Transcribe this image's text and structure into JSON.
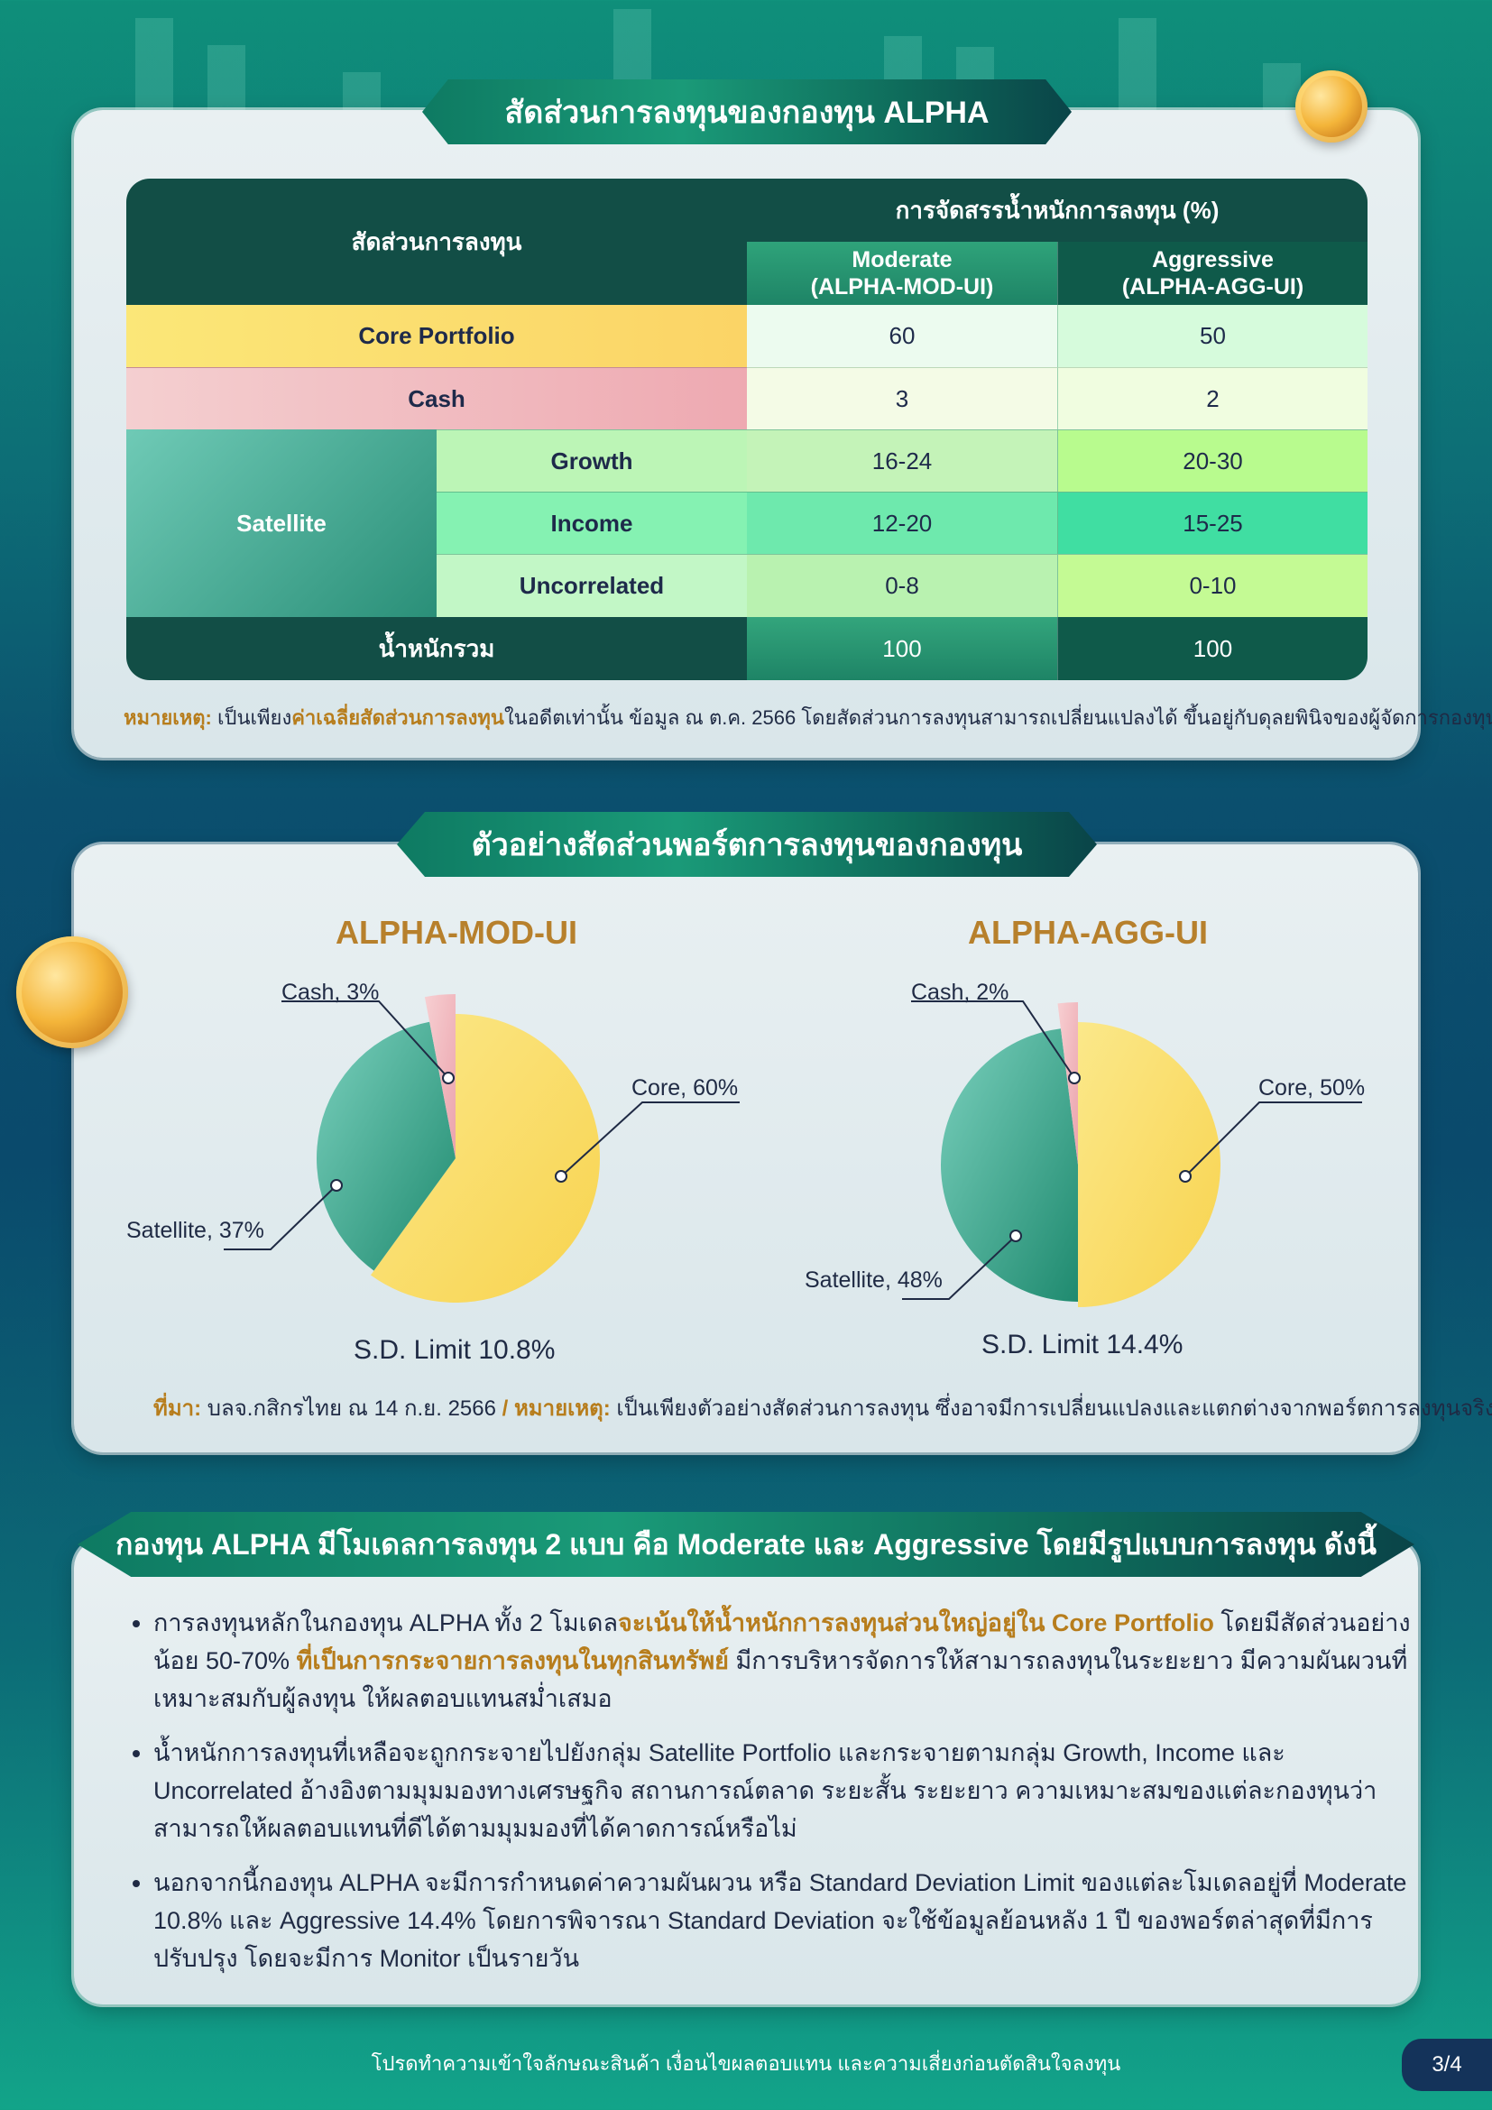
{
  "section1": {
    "title": "สัดส่วนการลงทุนของกองทุน ALPHA",
    "table": {
      "col_group_header": "สัดส่วนการลงทุน",
      "weight_header": "การจัดสรรน้ำหนักการลงทุน (%)",
      "moderate_header": "Moderate\n(ALPHA-MOD-UI)",
      "aggressive_header": "Aggressive\n(ALPHA-AGG-UI)",
      "rows": [
        {
          "label": "Core Portfolio",
          "moderate": "60",
          "aggressive": "50"
        },
        {
          "label": "Cash",
          "moderate": "3",
          "aggressive": "2"
        },
        {
          "label": "Growth",
          "moderate": "16-24",
          "aggressive": "20-30"
        },
        {
          "label": "Income",
          "moderate": "12-20",
          "aggressive": "15-25"
        },
        {
          "label": "Uncorrelated",
          "moderate": "0-8",
          "aggressive": "0-10"
        }
      ],
      "satellite_label": "Satellite",
      "total_label": "น้ำหนักรวม",
      "total_moderate": "100",
      "total_aggressive": "100"
    },
    "note_prefix": "หมายเหตุ:",
    "note_part1": " เป็นเพียง",
    "note_highlight": "ค่าเฉลี่ยสัดส่วนการลงทุน",
    "note_part2": "ในอดีตเท่านั้น ข้อมูล ณ ต.ค. 2566 โดยสัดส่วนการลงทุนสามารถเปลี่ยนแปลงได้ ขึ้นอยู่กับดุลยพินิจของผู้จัดการกองทุน"
  },
  "section2": {
    "title": "ตัวอย่างสัดส่วนพอร์ตการลงทุนของกองทุน",
    "source_prefix": "ที่มา:",
    "source_text": " บลจ.กสิกรไทย ณ 14 ก.ย. 2566 ",
    "sep": "/",
    "note_prefix": " หมายเหตุ:",
    "note_text": " เป็นเพียงตัวอย่างสัดส่วนการลงทุน ซึ่งอาจมีการเปลี่ยนแปลงและแตกต่างจากพอร์ตการลงทุนจริง"
  },
  "chart_data": [
    {
      "type": "pie",
      "title": "ALPHA-MOD-UI",
      "slices": [
        {
          "label": "Core, 60%",
          "value": 60,
          "color": "#fbd860"
        },
        {
          "label": "Satellite, 37%",
          "value": 37,
          "color": "#3aa88e"
        },
        {
          "label": "Cash, 3%",
          "value": 3,
          "color": "#f2b8bc"
        }
      ],
      "sd_limit": "S.D. Limit 10.8%"
    },
    {
      "type": "pie",
      "title": "ALPHA-AGG-UI",
      "slices": [
        {
          "label": "Core, 50%",
          "value": 50,
          "color": "#fbd860"
        },
        {
          "label": "Satellite, 48%",
          "value": 48,
          "color": "#3aa88e"
        },
        {
          "label": "Cash, 2%",
          "value": 2,
          "color": "#f2b8bc"
        }
      ],
      "sd_limit": "S.D. Limit 14.4%"
    }
  ],
  "section3": {
    "title": "กองทุน ALPHA มีโมเดลการลงทุน 2 แบบ คือ Moderate และ Aggressive โดยมีรูปแบบการลงทุน ดังนี้",
    "b1_part1": "การลงทุนหลักในกองทุน ALPHA ทั้ง 2 โมเดล",
    "b1_highlight1": "จะเน้นให้น้ำหนักการลงทุนส่วนใหญ่อยู่ใน Core Portfolio",
    "b1_part2": " โดยมีสัดส่วนอย่างน้อย 50-70% ",
    "b1_highlight2": "ที่เป็นการกระจายการลงทุนในทุกสินทรัพย์",
    "b1_part3": " มีการบริหารจัดการให้สามารถลงทุนในระยะยาว มีความผันผวนที่เหมาะสมกับผู้ลงทุน ให้ผลตอบแทนสม่ำเสมอ",
    "b2": "น้ำหนักการลงทุนที่เหลือจะถูกกระจายไปยังกลุ่ม Satellite Portfolio และกระจายตามกลุ่ม Growth, Income และ Uncorrelated อ้างอิงตามมุมมองทางเศรษฐกิจ สถานการณ์ตลาด ระยะสั้น ระยะยาว ความเหมาะสมของแต่ละกองทุนว่าสามารถให้ผลตอบแทนที่ดีได้ตามมุมมองที่ได้คาดการณ์หรือไม่",
    "b3": "นอกจากนี้กองทุน ALPHA จะมีการกำหนดค่าความผันผวน หรือ Standard Deviation Limit ของแต่ละโมเดลอยู่ที่ Moderate 10.8% และ Aggressive 14.4% โดยการพิจารณา Standard Deviation จะใช้ข้อมูลย้อนหลัง 1 ปี ของพอร์ตล่าสุดที่มีการปรับปรุง โดยจะมีการ Monitor เป็นรายวัน"
  },
  "footer": {
    "disclaimer": "โปรดทำความเข้าใจลักษณะสินค้า เงื่อนไขผลตอบแทน และความเสี่ยงก่อนตัดสินใจลงทุน",
    "page": "3/4"
  }
}
